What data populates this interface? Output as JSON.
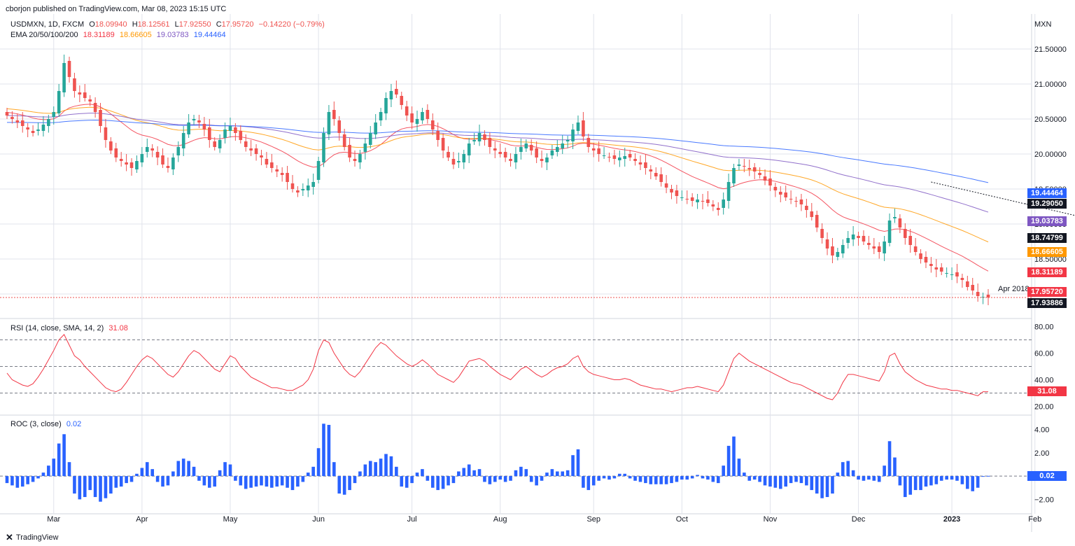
{
  "header": {
    "published": "cborjon published on TradingView.com, Mar 08, 2023 15:15 UTC",
    "symbol_line": "USDMXN, 1D, FXCM",
    "ohlc": {
      "o_label": "O",
      "o": "18.09940",
      "h_label": "H",
      "h": "18.12561",
      "l_label": "L",
      "l": "17.92550",
      "c_label": "C",
      "c": "17.95720",
      "change": "−0.14220 (−0.79%)"
    },
    "ema_title": "EMA 20/50/100/200",
    "ema_values": [
      "18.31189",
      "18.66605",
      "19.03783",
      "19.44464"
    ],
    "currency": "MXN"
  },
  "colors": {
    "up": "#26a69a",
    "down": "#ef5350",
    "ema20": "#f23645",
    "ema50": "#ff9800",
    "ema100": "#7e57c2",
    "ema200": "#2962ff",
    "rsi": "#f23645",
    "roc": "#2962ff",
    "grid": "#e0e3eb"
  },
  "price_tags": [
    {
      "value": "19.44464",
      "color": "#2962ff"
    },
    {
      "value": "19.29050",
      "color": "#131722"
    },
    {
      "value": "19.03783",
      "color": "#7e57c2"
    },
    {
      "value": "18.74799",
      "color": "#131722"
    },
    {
      "value": "18.66605",
      "color": "#ff9800"
    },
    {
      "value": "18.31189",
      "color": "#f23645"
    },
    {
      "value": "17.95720",
      "color": "#f23645"
    },
    {
      "value": "17.93886",
      "color": "#131722"
    }
  ],
  "annotation": "Apr 2018",
  "rsi_panel": {
    "title": "RSI (14, close, SMA, 14, 2)",
    "value": "31.08"
  },
  "roc_panel": {
    "title": "ROC (3, close)",
    "value": "0.02"
  },
  "footer": {
    "brand": "TradingView"
  },
  "chart_data": [
    {
      "type": "candlestick",
      "title": "USDMXN, 1D, FXCM",
      "y_ticks": [
        21.5,
        21.0,
        20.5,
        20.0,
        19.5,
        19.0,
        18.5,
        18.0
      ],
      "y_tick_labels": [
        "21.50000",
        "21.00000",
        "20.50000",
        "20.00000",
        "19.50000",
        "19.00000",
        "18.50000",
        "18.00000"
      ],
      "ylim": [
        17.7,
        21.8
      ],
      "x_tick_labels": [
        "Mar",
        "Apr",
        "May",
        "Jun",
        "Jul",
        "Aug",
        "Sep",
        "Oct",
        "Nov",
        "Dec",
        "2023",
        "Feb",
        "Mar"
      ],
      "x_tick_index": [
        9,
        26,
        43,
        60,
        78,
        95,
        113,
        130,
        147,
        164,
        182,
        198,
        215
      ],
      "close": [
        20.55,
        20.5,
        20.45,
        20.4,
        20.35,
        20.3,
        20.35,
        20.42,
        20.5,
        20.6,
        20.9,
        21.3,
        21.1,
        20.9,
        20.85,
        20.8,
        20.75,
        20.6,
        20.4,
        20.2,
        20.05,
        19.95,
        19.9,
        19.85,
        19.8,
        19.9,
        20.0,
        20.1,
        20.05,
        19.95,
        19.85,
        19.8,
        19.95,
        20.1,
        20.3,
        20.45,
        20.5,
        20.45,
        20.35,
        20.2,
        20.1,
        20.2,
        20.35,
        20.4,
        20.3,
        20.2,
        20.1,
        20.05,
        20.0,
        19.95,
        19.85,
        19.8,
        19.75,
        19.7,
        19.6,
        19.5,
        19.45,
        19.5,
        19.55,
        19.6,
        19.9,
        20.3,
        20.6,
        20.5,
        20.3,
        20.1,
        19.95,
        19.9,
        20.0,
        20.15,
        20.3,
        20.45,
        20.6,
        20.8,
        20.9,
        20.85,
        20.7,
        20.55,
        20.45,
        20.5,
        20.6,
        20.5,
        20.35,
        20.2,
        20.05,
        19.95,
        19.85,
        19.9,
        20.0,
        20.15,
        20.2,
        20.3,
        20.2,
        20.1,
        20.05,
        20.0,
        19.95,
        19.9,
        20.0,
        20.1,
        20.15,
        20.05,
        19.95,
        19.9,
        19.95,
        20.05,
        20.1,
        20.15,
        20.2,
        20.35,
        20.45,
        20.25,
        20.1,
        20.05,
        20.0,
        19.98,
        19.95,
        19.93,
        19.95,
        19.97,
        19.95,
        19.9,
        19.85,
        19.8,
        19.75,
        19.68,
        19.6,
        19.52,
        19.45,
        19.4,
        19.38,
        19.35,
        19.33,
        19.35,
        19.32,
        19.3,
        19.25,
        19.2,
        19.35,
        19.6,
        19.8,
        19.85,
        19.82,
        19.78,
        19.75,
        19.7,
        19.62,
        19.55,
        19.48,
        19.42,
        19.38,
        19.35,
        19.32,
        19.28,
        19.2,
        19.1,
        18.95,
        18.8,
        18.65,
        18.55,
        18.6,
        18.7,
        18.8,
        18.85,
        18.8,
        18.75,
        18.7,
        18.65,
        18.6,
        18.75,
        19.05,
        19.1,
        18.95,
        18.8,
        18.7,
        18.6,
        18.5,
        18.45,
        18.4,
        18.35,
        18.32,
        18.3,
        18.28,
        18.25,
        18.2,
        18.1,
        18.05,
        17.97,
        17.96,
        17.95
      ]
    },
    {
      "type": "line",
      "name": "RSI (14, close, SMA, 14, 2)",
      "ylim": [
        15,
        85
      ],
      "y_ticks": [
        80,
        60,
        40,
        20
      ],
      "y_tick_labels": [
        "80.00",
        "60.00",
        "40.00",
        "20.00"
      ],
      "levels": [
        70,
        50,
        30
      ],
      "values": [
        45,
        40,
        38,
        36,
        35,
        37,
        42,
        48,
        55,
        62,
        70,
        74,
        66,
        58,
        55,
        50,
        46,
        42,
        38,
        34,
        32,
        31,
        33,
        38,
        44,
        50,
        55,
        58,
        56,
        52,
        48,
        44,
        42,
        46,
        52,
        58,
        62,
        60,
        56,
        52,
        48,
        46,
        52,
        58,
        56,
        50,
        46,
        42,
        40,
        38,
        36,
        34,
        34,
        33,
        32,
        32,
        34,
        36,
        40,
        48,
        62,
        70,
        68,
        60,
        54,
        48,
        44,
        42,
        46,
        52,
        58,
        64,
        68,
        66,
        62,
        58,
        55,
        52,
        50,
        52,
        55,
        52,
        48,
        44,
        42,
        40,
        38,
        42,
        48,
        54,
        55,
        56,
        54,
        50,
        47,
        44,
        42,
        40,
        44,
        48,
        50,
        47,
        44,
        42,
        44,
        47,
        49,
        50,
        52,
        56,
        58,
        50,
        46,
        44,
        43,
        42,
        41,
        40,
        40,
        41,
        40,
        38,
        36,
        35,
        34,
        33,
        33,
        32,
        31,
        32,
        33,
        34,
        34,
        35,
        34,
        33,
        32,
        31,
        36,
        46,
        56,
        60,
        57,
        54,
        52,
        50,
        48,
        46,
        44,
        42,
        40,
        38,
        37,
        36,
        34,
        32,
        30,
        28,
        26,
        25,
        30,
        38,
        44,
        44,
        43,
        42,
        41,
        40,
        39,
        46,
        58,
        60,
        52,
        46,
        43,
        40,
        38,
        36,
        35,
        34,
        33,
        33,
        32,
        32,
        31,
        30,
        29,
        28,
        31,
        31
      ]
    },
    {
      "type": "bar",
      "name": "ROC (3, close)",
      "ylim": [
        -3,
        5
      ],
      "y_ticks": [
        4,
        2,
        0,
        -2
      ],
      "y_tick_labels": [
        "4.00",
        "2.00",
        "0.00",
        "−2.00"
      ],
      "values": [
        -0.6,
        -0.8,
        -1.0,
        -0.9,
        -0.7,
        -0.5,
        -0.2,
        0.3,
        0.9,
        1.5,
        2.8,
        3.6,
        1.2,
        -1.5,
        -2.0,
        -1.8,
        -1.2,
        -1.8,
        -2.2,
        -1.9,
        -1.5,
        -1.0,
        -0.9,
        -0.6,
        -0.5,
        0.2,
        0.7,
        1.2,
        0.6,
        -0.5,
        -0.9,
        -0.8,
        0.4,
        1.3,
        1.5,
        1.3,
        0.8,
        -0.4,
        -0.8,
        -1.0,
        -0.9,
        0.5,
        1.2,
        1.0,
        -0.4,
        -0.8,
        -1.1,
        -1.0,
        -0.9,
        -0.8,
        -0.9,
        -1.0,
        -0.9,
        -0.8,
        -1.0,
        -1.2,
        -0.9,
        -0.5,
        0.3,
        0.8,
        2.4,
        4.5,
        4.4,
        1.2,
        -1.5,
        -1.6,
        -1.2,
        -0.6,
        0.4,
        1.0,
        1.3,
        1.2,
        1.5,
        1.9,
        1.7,
        0.8,
        -0.9,
        -1.0,
        -0.6,
        0.3,
        0.6,
        -0.4,
        -1.0,
        -1.2,
        -1.1,
        -0.8,
        -0.6,
        0.4,
        0.7,
        1.0,
        0.5,
        0.6,
        -0.5,
        -0.7,
        -0.5,
        -0.3,
        -0.5,
        -0.4,
        0.5,
        0.8,
        0.6,
        -0.5,
        -0.8,
        -0.4,
        0.3,
        0.6,
        0.4,
        0.4,
        0.5,
        1.8,
        2.3,
        -1.0,
        -1.2,
        -0.8,
        -0.4,
        -0.2,
        -0.3,
        -0.2,
        0.2,
        0.2,
        -0.2,
        -0.4,
        -0.5,
        -0.6,
        -0.7,
        -0.7,
        -0.7,
        -0.7,
        -0.6,
        -0.5,
        -0.3,
        -0.3,
        -0.2,
        0.1,
        -0.2,
        -0.3,
        -0.5,
        -0.6,
        0.9,
        2.6,
        3.4,
        1.5,
        0.3,
        -0.4,
        -0.3,
        -0.5,
        -0.8,
        -0.9,
        -1.0,
        -1.1,
        -0.9,
        -0.6,
        -0.5,
        -0.6,
        -0.8,
        -1.2,
        -1.5,
        -1.9,
        -1.8,
        -1.5,
        0.3,
        1.2,
        1.3,
        0.5,
        -0.3,
        -0.4,
        -0.3,
        -0.4,
        -0.5,
        0.9,
        3.0,
        1.6,
        -0.8,
        -1.8,
        -1.6,
        -1.2,
        -1.2,
        -0.9,
        -0.8,
        -0.7,
        -0.4,
        -0.3,
        -0.3,
        -0.4,
        -0.7,
        -1.1,
        -1.3,
        -1.0,
        0.0,
        0.02
      ]
    }
  ]
}
